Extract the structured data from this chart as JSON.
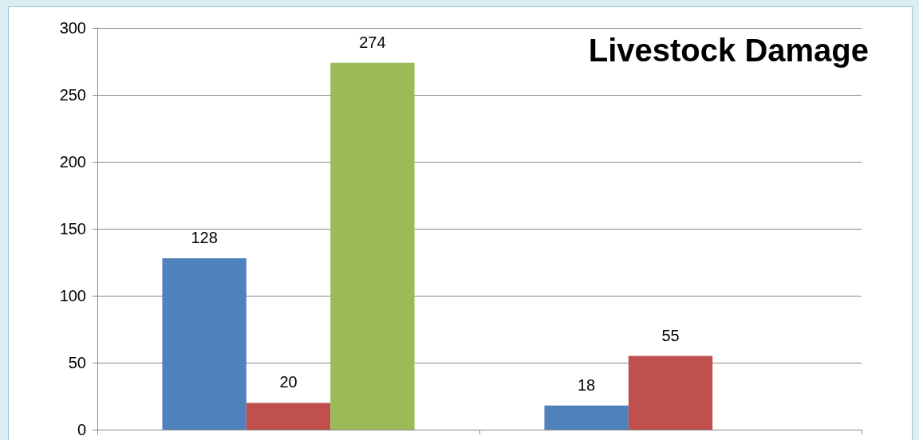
{
  "chart_data": {
    "type": "bar",
    "title": "Livestock Damage",
    "categories": [
      null,
      null
    ],
    "series": [
      {
        "color": "#4f81bd",
        "values": [
          128,
          18
        ]
      },
      {
        "color": "#c0504d",
        "values": [
          20,
          55
        ]
      },
      {
        "color": "#9bbb59",
        "values": [
          274,
          null
        ]
      }
    ],
    "ylim": [
      0,
      300
    ],
    "yticks": [
      0,
      50,
      100,
      150,
      200,
      250,
      300
    ],
    "grid": "y",
    "data_labels": true
  }
}
